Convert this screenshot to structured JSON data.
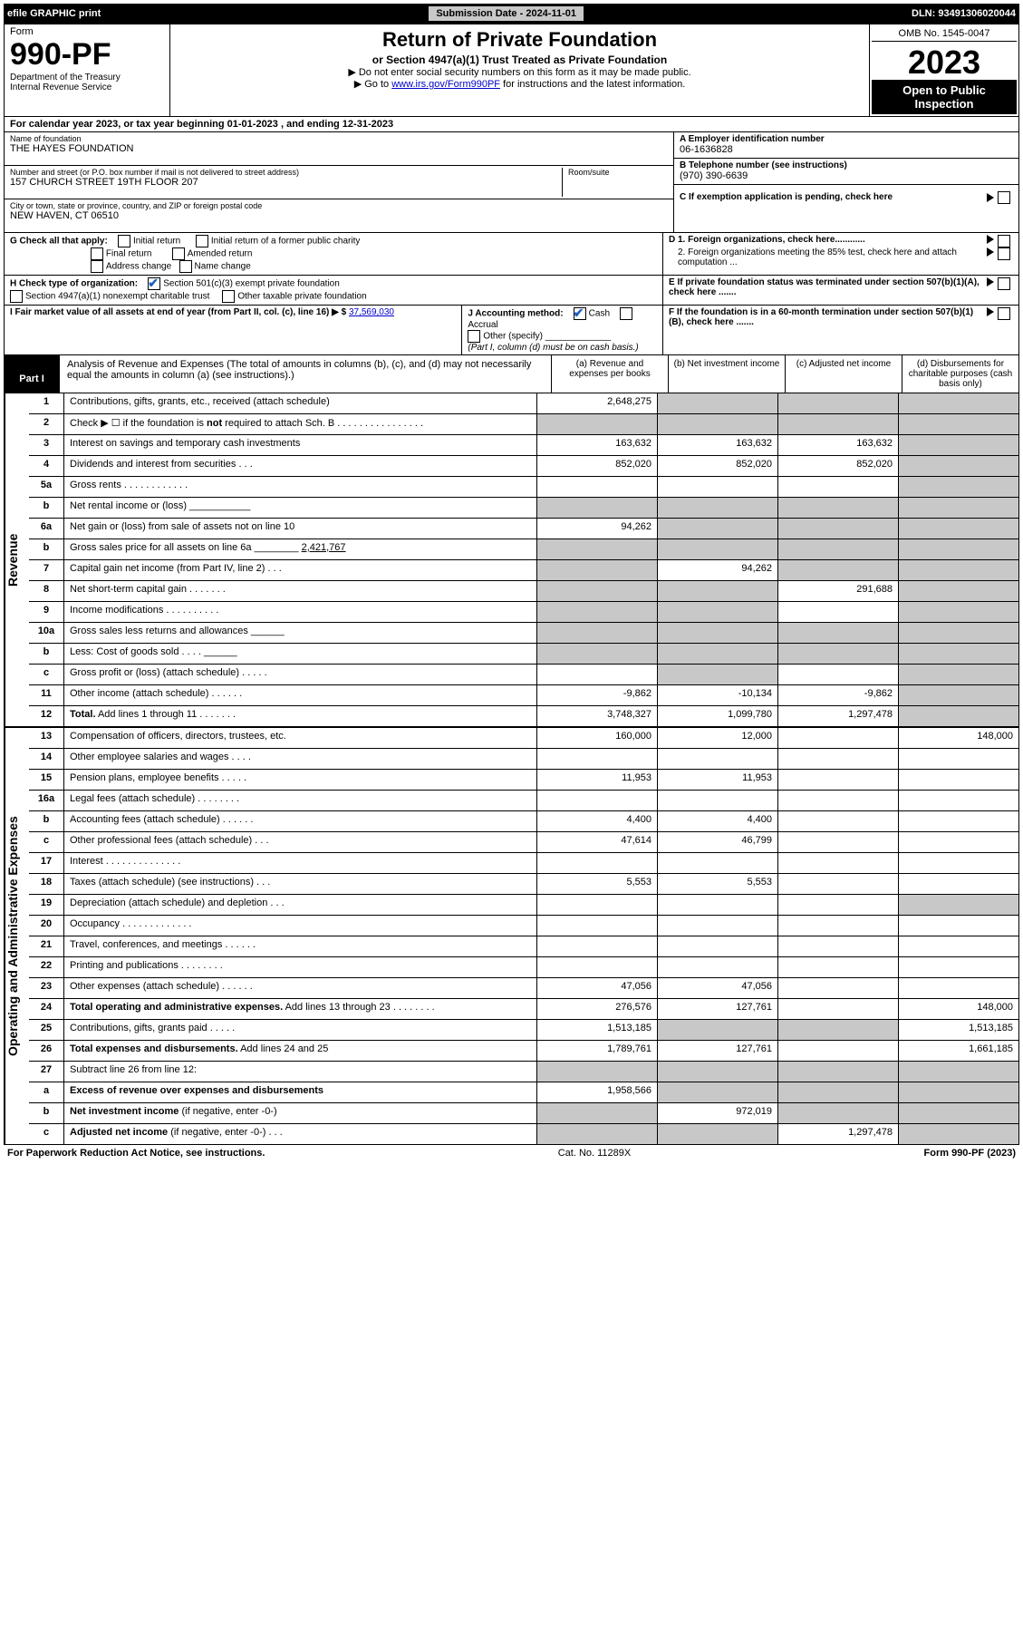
{
  "topbar": {
    "efile": "efile GRAPHIC print",
    "submission": "Submission Date - 2024-11-01",
    "dln": "DLN: 93491306020044"
  },
  "header": {
    "form_word": "Form",
    "form_number": "990-PF",
    "dept": "Department of the Treasury",
    "irs": "Internal Revenue Service",
    "title": "Return of Private Foundation",
    "subtitle1": "or Section 4947(a)(1) Trust Treated as Private Foundation",
    "subtitle2": "▶ Do not enter social security numbers on this form as it may be made public.",
    "subtitle3_pre": "▶ Go to ",
    "subtitle3_link": "www.irs.gov/Form990PF",
    "subtitle3_post": " for instructions and the latest information.",
    "omb": "OMB No. 1545-0047",
    "year": "2023",
    "open": "Open to Public Inspection"
  },
  "calendar": "For calendar year 2023, or tax year beginning 01-01-2023            , and ending 12-31-2023",
  "identity": {
    "name_lbl": "Name of foundation",
    "name": "THE HAYES FOUNDATION",
    "addr_lbl": "Number and street (or P.O. box number if mail is not delivered to street address)",
    "addr": "157 CHURCH STREET 19TH FLOOR 207",
    "room_lbl": "Room/suite",
    "city_lbl": "City or town, state or province, country, and ZIP or foreign postal code",
    "city": "NEW HAVEN, CT  06510",
    "ein_lbl": "A Employer identification number",
    "ein": "06-1636828",
    "tel_lbl": "B Telephone number (see instructions)",
    "tel": "(970) 390-6639",
    "c_lbl": "C If exemption application is pending, check here",
    "d1": "D 1. Foreign organizations, check here............",
    "d2": "2. Foreign organizations meeting the 85% test, check here and attach computation ...",
    "e": "E  If private foundation status was terminated under section 507(b)(1)(A), check here .......",
    "f": "F  If the foundation is in a 60-month termination under section 507(b)(1)(B), check here .......",
    "g_lbl": "G Check all that apply:",
    "g_opts": [
      "Initial return",
      "Final return",
      "Address change",
      "Initial return of a former public charity",
      "Amended return",
      "Name change"
    ],
    "h_lbl": "H Check type of organization:",
    "h_opt1": "Section 501(c)(3) exempt private foundation",
    "h_opt2": "Section 4947(a)(1) nonexempt charitable trust",
    "h_opt3": "Other taxable private foundation",
    "i_lbl": "I Fair market value of all assets at end of year (from Part II, col. (c), line 16) ▶ $",
    "i_val": "37,569,030",
    "j_lbl": "J Accounting method:",
    "j_cash": "Cash",
    "j_accr": "Accrual",
    "j_other": "Other (specify)",
    "j_note": "(Part I, column (d) must be on cash basis.)"
  },
  "part1": {
    "tag": "Part I",
    "title": "Analysis of Revenue and Expenses",
    "note": "(The total of amounts in columns (b), (c), and (d) may not necessarily equal the amounts in column (a) (see instructions).)",
    "col_a": "(a)  Revenue and expenses per books",
    "col_b": "(b)  Net investment income",
    "col_c": "(c)  Adjusted net income",
    "col_d": "(d)  Disbursements for charitable purposes (cash basis only)"
  },
  "sections": {
    "revenue": "Revenue",
    "expenses": "Operating and Administrative Expenses"
  },
  "rows": [
    {
      "num": "1",
      "desc": "Contributions, gifts, grants, etc., received (attach schedule)",
      "a": "2,648,275",
      "b": "",
      "c": "",
      "d": "",
      "grey": [
        "b",
        "c",
        "d"
      ]
    },
    {
      "num": "2",
      "desc": "Check ▶ ☐ if the foundation is <b>not</b> required to attach Sch. B    .   .   .   .   .   .   .   .   .   .   .   .   .   .   .   .",
      "a": "",
      "b": "",
      "c": "",
      "d": "",
      "grey": [
        "a",
        "b",
        "c",
        "d"
      ]
    },
    {
      "num": "3",
      "desc": "Interest on savings and temporary cash investments",
      "a": "163,632",
      "b": "163,632",
      "c": "163,632",
      "d": "",
      "grey": [
        "d"
      ]
    },
    {
      "num": "4",
      "desc": "Dividends and interest from securities    .   .   .",
      "a": "852,020",
      "b": "852,020",
      "c": "852,020",
      "d": "",
      "grey": [
        "d"
      ]
    },
    {
      "num": "5a",
      "desc": "Gross rents    .   .   .   .   .   .   .   .   .   .   .   .",
      "a": "",
      "b": "",
      "c": "",
      "d": "",
      "grey": [
        "d"
      ]
    },
    {
      "num": "b",
      "desc": "Net rental income or (loss) ___________",
      "a": "",
      "b": "",
      "c": "",
      "d": "",
      "grey": [
        "a",
        "b",
        "c",
        "d"
      ]
    },
    {
      "num": "6a",
      "desc": "Net gain or (loss) from sale of assets not on line 10",
      "a": "94,262",
      "b": "",
      "c": "",
      "d": "",
      "grey": [
        "b",
        "c",
        "d"
      ]
    },
    {
      "num": "b",
      "desc": "Gross sales price for all assets on line 6a ________ <u>2,421,767</u>",
      "a": "",
      "b": "",
      "c": "",
      "d": "",
      "grey": [
        "a",
        "b",
        "c",
        "d"
      ]
    },
    {
      "num": "7",
      "desc": "Capital gain net income (from Part IV, line 2)    .   .   .",
      "a": "",
      "b": "94,262",
      "c": "",
      "d": "",
      "grey": [
        "a",
        "c",
        "d"
      ]
    },
    {
      "num": "8",
      "desc": "Net short-term capital gain   .   .   .   .   .   .   .",
      "a": "",
      "b": "",
      "c": "291,688",
      "d": "",
      "grey": [
        "a",
        "b",
        "d"
      ]
    },
    {
      "num": "9",
      "desc": "Income modifications  .   .   .   .   .   .   .   .   .   .",
      "a": "",
      "b": "",
      "c": "",
      "d": "",
      "grey": [
        "a",
        "b",
        "d"
      ]
    },
    {
      "num": "10a",
      "desc": "Gross sales less returns and allowances ______",
      "a": "",
      "b": "",
      "c": "",
      "d": "",
      "grey": [
        "a",
        "b",
        "c",
        "d"
      ]
    },
    {
      "num": "b",
      "desc": "Less: Cost of goods sold    .   .   .   .  ______",
      "a": "",
      "b": "",
      "c": "",
      "d": "",
      "grey": [
        "a",
        "b",
        "c",
        "d"
      ]
    },
    {
      "num": "c",
      "desc": "Gross profit or (loss) (attach schedule)    .   .   .   .   .",
      "a": "",
      "b": "",
      "c": "",
      "d": "",
      "grey": [
        "b",
        "d"
      ]
    },
    {
      "num": "11",
      "desc": "Other income (attach schedule)    .   .   .   .   .   .",
      "a": "-9,862",
      "b": "-10,134",
      "c": "-9,862",
      "d": "",
      "grey": [
        "d"
      ]
    },
    {
      "num": "12",
      "desc": "<b>Total.</b> Add lines 1 through 11    .   .   .   .   .   .   .",
      "a": "3,748,327",
      "b": "1,099,780",
      "c": "1,297,478",
      "d": "",
      "grey": [
        "d"
      ]
    },
    {
      "num": "13",
      "desc": "Compensation of officers, directors, trustees, etc.",
      "a": "160,000",
      "b": "12,000",
      "c": "",
      "d": "148,000",
      "grey": []
    },
    {
      "num": "14",
      "desc": "Other employee salaries and wages    .   .   .   .",
      "a": "",
      "b": "",
      "c": "",
      "d": "",
      "grey": []
    },
    {
      "num": "15",
      "desc": "Pension plans, employee benefits   .   .   .   .   .",
      "a": "11,953",
      "b": "11,953",
      "c": "",
      "d": "",
      "grey": []
    },
    {
      "num": "16a",
      "desc": "Legal fees (attach schedule)  .   .   .   .   .   .   .   .",
      "a": "",
      "b": "",
      "c": "",
      "d": "",
      "grey": []
    },
    {
      "num": "b",
      "desc": "Accounting fees (attach schedule)  .   .   .   .   .   .",
      "a": "4,400",
      "b": "4,400",
      "c": "",
      "d": "",
      "grey": []
    },
    {
      "num": "c",
      "desc": "Other professional fees (attach schedule)    .   .   .",
      "a": "47,614",
      "b": "46,799",
      "c": "",
      "d": "",
      "grey": []
    },
    {
      "num": "17",
      "desc": "Interest  .   .   .   .   .   .   .   .   .   .   .   .   .   .",
      "a": "",
      "b": "",
      "c": "",
      "d": "",
      "grey": []
    },
    {
      "num": "18",
      "desc": "Taxes (attach schedule) (see instructions)    .   .   .",
      "a": "5,553",
      "b": "5,553",
      "c": "",
      "d": "",
      "grey": []
    },
    {
      "num": "19",
      "desc": "Depreciation (attach schedule) and depletion    .   .   .",
      "a": "",
      "b": "",
      "c": "",
      "d": "",
      "grey": [
        "d"
      ]
    },
    {
      "num": "20",
      "desc": "Occupancy  .   .   .   .   .   .   .   .   .   .   .   .   .",
      "a": "",
      "b": "",
      "c": "",
      "d": "",
      "grey": []
    },
    {
      "num": "21",
      "desc": "Travel, conferences, and meetings  .   .   .   .   .   .",
      "a": "",
      "b": "",
      "c": "",
      "d": "",
      "grey": []
    },
    {
      "num": "22",
      "desc": "Printing and publications  .   .   .   .   .   .   .   .",
      "a": "",
      "b": "",
      "c": "",
      "d": "",
      "grey": []
    },
    {
      "num": "23",
      "desc": "Other expenses (attach schedule)  .   .   .   .   .   .",
      "a": "47,056",
      "b": "47,056",
      "c": "",
      "d": "",
      "grey": []
    },
    {
      "num": "24",
      "desc": "<b>Total operating and administrative expenses.</b> Add lines 13 through 23    .   .   .   .   .   .   .   .",
      "a": "276,576",
      "b": "127,761",
      "c": "",
      "d": "148,000",
      "grey": []
    },
    {
      "num": "25",
      "desc": "Contributions, gifts, grants paid    .   .   .   .   .",
      "a": "1,513,185",
      "b": "",
      "c": "",
      "d": "1,513,185",
      "grey": [
        "b",
        "c"
      ]
    },
    {
      "num": "26",
      "desc": "<b>Total expenses and disbursements.</b> Add lines 24 and 25",
      "a": "1,789,761",
      "b": "127,761",
      "c": "",
      "d": "1,661,185",
      "grey": []
    },
    {
      "num": "27",
      "desc": "Subtract line 26 from line 12:",
      "a": "",
      "b": "",
      "c": "",
      "d": "",
      "grey": [
        "a",
        "b",
        "c",
        "d"
      ]
    },
    {
      "num": "a",
      "desc": "<b>Excess of revenue over expenses and disbursements</b>",
      "a": "1,958,566",
      "b": "",
      "c": "",
      "d": "",
      "grey": [
        "b",
        "c",
        "d"
      ]
    },
    {
      "num": "b",
      "desc": "<b>Net investment income</b> (if negative, enter -0-)",
      "a": "",
      "b": "972,019",
      "c": "",
      "d": "",
      "grey": [
        "a",
        "c",
        "d"
      ]
    },
    {
      "num": "c",
      "desc": "<b>Adjusted net income</b> (if negative, enter -0-)   .   .   .",
      "a": "",
      "b": "",
      "c": "1,297,478",
      "d": "",
      "grey": [
        "a",
        "b",
        "d"
      ]
    }
  ],
  "footer": {
    "left": "For Paperwork Reduction Act Notice, see instructions.",
    "mid": "Cat. No. 11289X",
    "right": "Form 990-PF (2023)"
  },
  "colors": {
    "link": "#0000cc",
    "grey": "#c8c8c8"
  }
}
